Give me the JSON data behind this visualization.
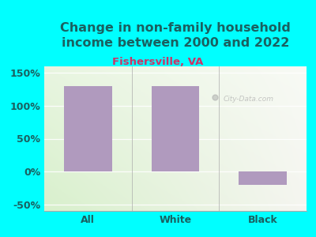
{
  "title": "Change in non-family household\nincome between 2000 and 2022",
  "subtitle": "Fishersville, VA",
  "categories": [
    "All",
    "White",
    "Black"
  ],
  "values": [
    130,
    130,
    -20
  ],
  "bar_color": "#b09abe",
  "title_color": "#1a6060",
  "subtitle_color": "#cc3366",
  "tick_label_color": "#1a6060",
  "background_color": "#00ffff",
  "plot_bg_left": "#d8f0cc",
  "plot_bg_right": "#f5f5f0",
  "ylim": [
    -60,
    160
  ],
  "yticks": [
    -50,
    0,
    50,
    100,
    150
  ],
  "ytick_labels": [
    "-50%",
    "0%",
    "50%",
    "100%",
    "150%"
  ],
  "title_fontsize": 11.5,
  "subtitle_fontsize": 9.5,
  "tick_fontsize": 9,
  "watermark": "City-Data.com"
}
